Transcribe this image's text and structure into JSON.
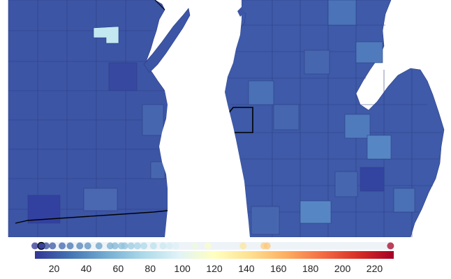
{
  "map": {
    "region": "Wisconsin and Lower Michigan counties (choropleth)",
    "colors": {
      "low": "#3b4da0",
      "base": "#3c55a5",
      "mid": "#4a73b8",
      "light": "#5b8ac6",
      "highlight": "#c4e8f0",
      "water": "#ffffff",
      "border": "#222222"
    },
    "highlighted_county_value_index": 1
  },
  "legend": {
    "colorscale": [
      "#313695",
      "#4575b4",
      "#74add1",
      "#abd9e9",
      "#e0f3f8",
      "#ffffbf",
      "#fee090",
      "#fdae61",
      "#f46d43",
      "#d73027",
      "#a50026"
    ],
    "range": [
      8,
      232
    ],
    "ticks": [
      {
        "value": 20,
        "label": "20"
      },
      {
        "value": 40,
        "label": "40"
      },
      {
        "value": 60,
        "label": "60"
      },
      {
        "value": 80,
        "label": "80"
      },
      {
        "value": 100,
        "label": "100"
      },
      {
        "value": 120,
        "label": "120"
      },
      {
        "value": 140,
        "label": "140"
      },
      {
        "value": 160,
        "label": "160"
      },
      {
        "value": 180,
        "label": "180"
      },
      {
        "value": 200,
        "label": "200"
      },
      {
        "value": 220,
        "label": "220"
      }
    ],
    "dots": [
      8,
      12,
      15,
      19,
      25,
      30,
      36,
      41,
      48,
      55,
      58,
      62,
      64,
      68,
      72,
      76,
      82,
      88,
      92,
      96,
      108,
      116,
      138,
      151,
      153,
      230
    ]
  }
}
